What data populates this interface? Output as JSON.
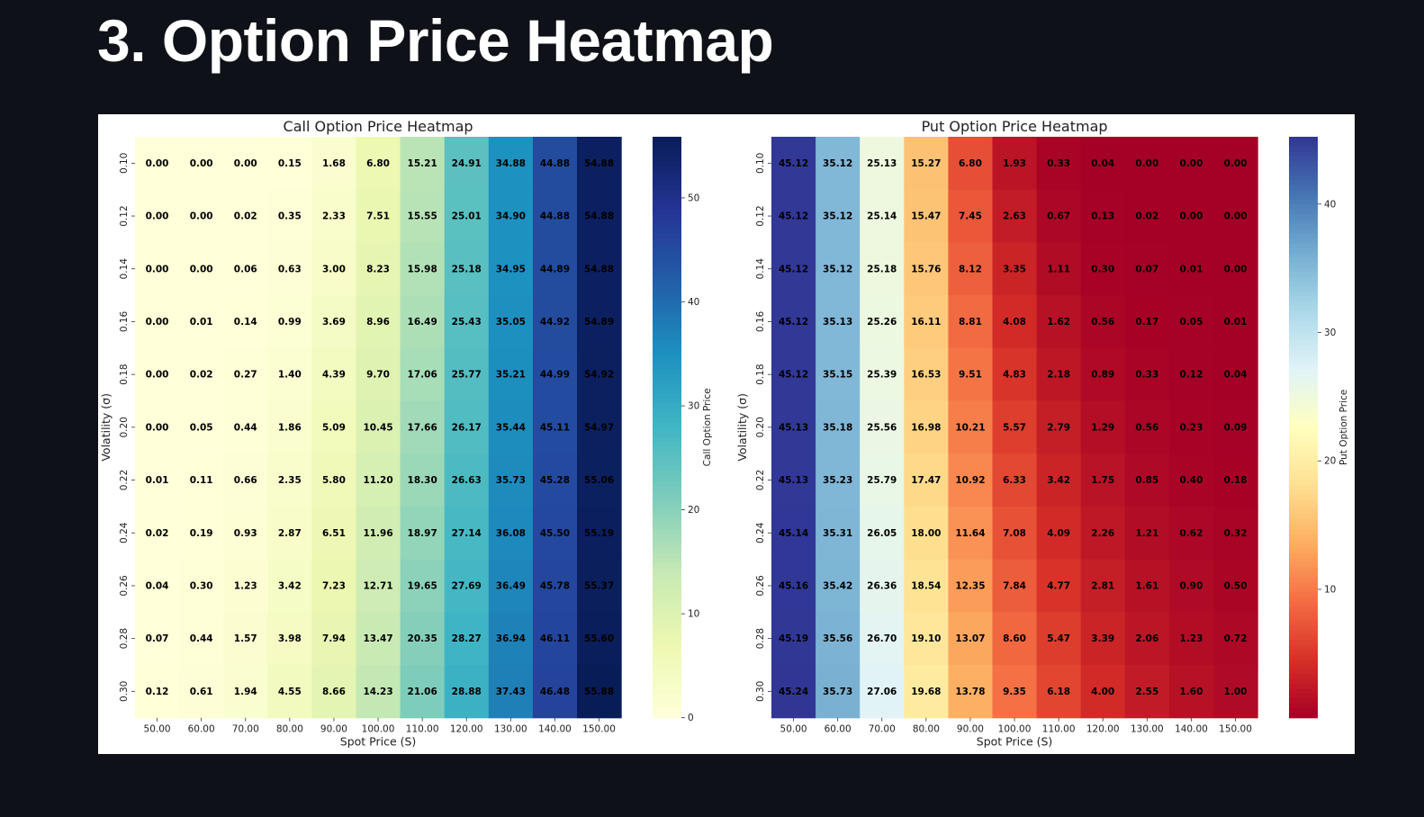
{
  "page": {
    "title": "3. Option Price Heatmap"
  },
  "chart_data": [
    {
      "type": "heatmap",
      "title": "Call Option Price Heatmap",
      "xlabel": "Spot Price (S)",
      "ylabel": "Volatility (σ)",
      "colorbar_label": "Call Option Price",
      "colormap": "YlGnBu",
      "colorbar_ticks": [
        "0",
        "10",
        "20",
        "30",
        "40",
        "50"
      ],
      "vmin": 0,
      "vmax": 55.88,
      "x": [
        "50.00",
        "60.00",
        "70.00",
        "80.00",
        "90.00",
        "100.00",
        "110.00",
        "120.00",
        "130.00",
        "140.00",
        "150.00"
      ],
      "y": [
        "0.10",
        "0.12",
        "0.14",
        "0.16",
        "0.18",
        "0.20",
        "0.22",
        "0.24",
        "0.26",
        "0.28",
        "0.30"
      ],
      "values": [
        [
          "0.00",
          "0.00",
          "0.00",
          "0.15",
          "1.68",
          "6.80",
          "15.21",
          "24.91",
          "34.88",
          "44.88",
          "54.88"
        ],
        [
          "0.00",
          "0.00",
          "0.02",
          "0.35",
          "2.33",
          "7.51",
          "15.55",
          "25.01",
          "34.90",
          "44.88",
          "54.88"
        ],
        [
          "0.00",
          "0.00",
          "0.06",
          "0.63",
          "3.00",
          "8.23",
          "15.98",
          "25.18",
          "34.95",
          "44.89",
          "54.88"
        ],
        [
          "0.00",
          "0.01",
          "0.14",
          "0.99",
          "3.69",
          "8.96",
          "16.49",
          "25.43",
          "35.05",
          "44.92",
          "54.89"
        ],
        [
          "0.00",
          "0.02",
          "0.27",
          "1.40",
          "4.39",
          "9.70",
          "17.06",
          "25.77",
          "35.21",
          "44.99",
          "54.92"
        ],
        [
          "0.00",
          "0.05",
          "0.44",
          "1.86",
          "5.09",
          "10.45",
          "17.66",
          "26.17",
          "35.44",
          "45.11",
          "54.97"
        ],
        [
          "0.01",
          "0.11",
          "0.66",
          "2.35",
          "5.80",
          "11.20",
          "18.30",
          "26.63",
          "35.73",
          "45.28",
          "55.06"
        ],
        [
          "0.02",
          "0.19",
          "0.93",
          "2.87",
          "6.51",
          "11.96",
          "18.97",
          "27.14",
          "36.08",
          "45.50",
          "55.19"
        ],
        [
          "0.04",
          "0.30",
          "1.23",
          "3.42",
          "7.23",
          "12.71",
          "19.65",
          "27.69",
          "36.49",
          "45.78",
          "55.37"
        ],
        [
          "0.07",
          "0.44",
          "1.57",
          "3.98",
          "7.94",
          "13.47",
          "20.35",
          "28.27",
          "36.94",
          "46.11",
          "55.60"
        ],
        [
          "0.12",
          "0.61",
          "1.94",
          "4.55",
          "8.66",
          "14.23",
          "21.06",
          "28.88",
          "37.43",
          "46.48",
          "55.88"
        ]
      ]
    },
    {
      "type": "heatmap",
      "title": "Put Option Price Heatmap",
      "xlabel": "Spot Price (S)",
      "ylabel": "Volatility (σ)",
      "colorbar_label": "Put Option Price",
      "colormap": "RdYlBu",
      "colorbar_ticks": [
        "10",
        "20",
        "30",
        "40"
      ],
      "vmin": 0,
      "vmax": 45.24,
      "x": [
        "50.00",
        "60.00",
        "70.00",
        "80.00",
        "90.00",
        "100.00",
        "110.00",
        "120.00",
        "130.00",
        "140.00",
        "150.00"
      ],
      "y": [
        "0.10",
        "0.12",
        "0.14",
        "0.16",
        "0.18",
        "0.20",
        "0.22",
        "0.24",
        "0.26",
        "0.28",
        "0.30"
      ],
      "values": [
        [
          "45.12",
          "35.12",
          "25.13",
          "15.27",
          "6.80",
          "1.93",
          "0.33",
          "0.04",
          "0.00",
          "0.00",
          "0.00"
        ],
        [
          "45.12",
          "35.12",
          "25.14",
          "15.47",
          "7.45",
          "2.63",
          "0.67",
          "0.13",
          "0.02",
          "0.00",
          "0.00"
        ],
        [
          "45.12",
          "35.12",
          "25.18",
          "15.76",
          "8.12",
          "3.35",
          "1.11",
          "0.30",
          "0.07",
          "0.01",
          "0.00"
        ],
        [
          "45.12",
          "35.13",
          "25.26",
          "16.11",
          "8.81",
          "4.08",
          "1.62",
          "0.56",
          "0.17",
          "0.05",
          "0.01"
        ],
        [
          "45.12",
          "35.15",
          "25.39",
          "16.53",
          "9.51",
          "4.83",
          "2.18",
          "0.89",
          "0.33",
          "0.12",
          "0.04"
        ],
        [
          "45.13",
          "35.18",
          "25.56",
          "16.98",
          "10.21",
          "5.57",
          "2.79",
          "1.29",
          "0.56",
          "0.23",
          "0.09"
        ],
        [
          "45.13",
          "35.23",
          "25.79",
          "17.47",
          "10.92",
          "6.33",
          "3.42",
          "1.75",
          "0.85",
          "0.40",
          "0.18"
        ],
        [
          "45.14",
          "35.31",
          "26.05",
          "18.00",
          "11.64",
          "7.08",
          "4.09",
          "2.26",
          "1.21",
          "0.62",
          "0.32"
        ],
        [
          "45.16",
          "35.42",
          "26.36",
          "18.54",
          "12.35",
          "7.84",
          "4.77",
          "2.81",
          "1.61",
          "0.90",
          "0.50"
        ],
        [
          "45.19",
          "35.56",
          "26.70",
          "19.10",
          "13.07",
          "8.60",
          "5.47",
          "3.39",
          "2.06",
          "1.23",
          "0.72"
        ],
        [
          "45.24",
          "35.73",
          "27.06",
          "19.68",
          "13.78",
          "9.35",
          "6.18",
          "4.00",
          "2.55",
          "1.60",
          "1.00"
        ]
      ]
    }
  ]
}
